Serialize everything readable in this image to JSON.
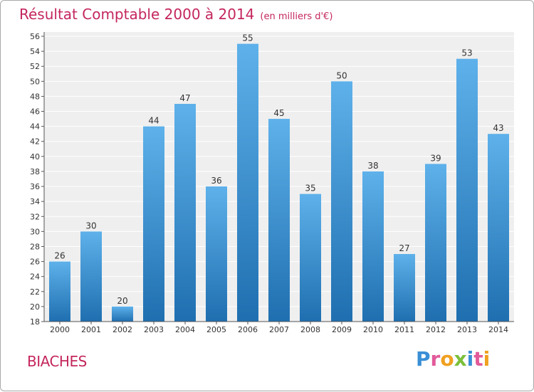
{
  "chart_data": {
    "type": "bar",
    "title": "Résultat Comptable 2000 à 2014",
    "subtitle": "(en milliers d'€)",
    "categories": [
      "2000",
      "2001",
      "2002",
      "2003",
      "2004",
      "2005",
      "2006",
      "2007",
      "2008",
      "2009",
      "2010",
      "2011",
      "2012",
      "2013",
      "2014"
    ],
    "values": [
      26,
      30,
      20,
      44,
      47,
      36,
      55,
      45,
      35,
      50,
      38,
      27,
      39,
      53,
      43
    ],
    "ylim": [
      18,
      56
    ],
    "yticks": [
      18,
      20,
      22,
      24,
      26,
      28,
      30,
      32,
      34,
      36,
      38,
      40,
      42,
      44,
      46,
      48,
      50,
      52,
      54,
      56
    ],
    "xlabel": "",
    "ylabel": "",
    "grid": true
  },
  "location": "BIACHES",
  "brand": {
    "letters": [
      "P",
      "r",
      "o",
      "x",
      "i",
      "t",
      "i"
    ]
  },
  "colors": {
    "title": "#c4265e",
    "bar_top": "#5eb1ea",
    "bar_bottom": "#1f6fb0",
    "plot_bg": "#efefef",
    "grid": "#ffffff",
    "brand_letters": [
      "#3a8fd6",
      "#e25a9a",
      "#f0a020",
      "#7bbf3a",
      "#3a8fd6",
      "#e25a9a",
      "#f0a020"
    ]
  }
}
